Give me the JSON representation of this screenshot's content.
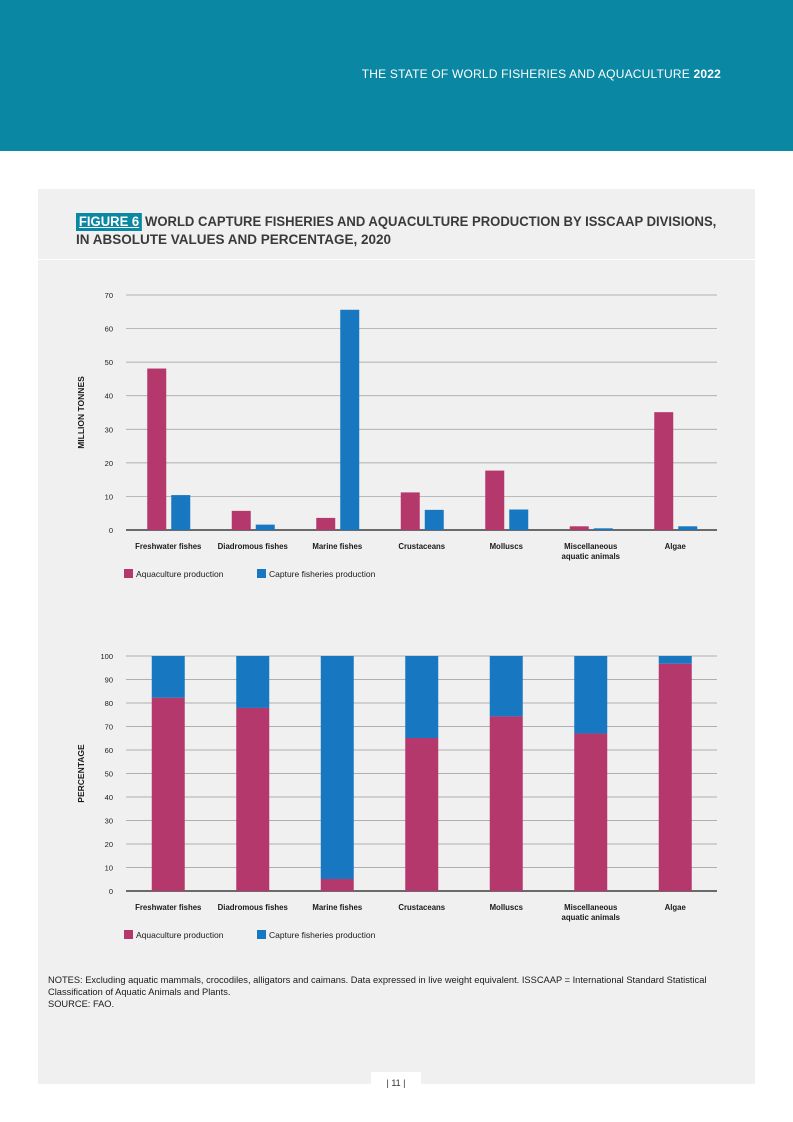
{
  "header": {
    "title_main": "THE STATE OF WORLD FISHERIES AND AQUACULTURE",
    "title_year": "2022"
  },
  "figure": {
    "badge": "FIGURE 6",
    "title_line1": "WORLD CAPTURE FISHERIES AND AQUACULTURE PRODUCTION BY ISSCAAP DIVISIONS,",
    "title_line2": "IN ABSOLUTE VALUES AND PERCENTAGE, 2020"
  },
  "colors": {
    "aquaculture": "#b5386d",
    "capture": "#1777c1",
    "banner": "#0a87a2"
  },
  "chart_data": [
    {
      "type": "bar",
      "ylabel": "MILLION TONNES",
      "ylim": [
        0,
        70
      ],
      "yticks": [
        0,
        10,
        20,
        30,
        40,
        50,
        60,
        70
      ],
      "grid": true,
      "legend_position": "bottom-left",
      "categories": [
        [
          "Freshwater fishes"
        ],
        [
          "Diadromous fishes"
        ],
        [
          "Marine fishes"
        ],
        [
          "Crustaceans"
        ],
        [
          "Molluscs"
        ],
        [
          "Miscellaneous",
          "aquatic animals"
        ],
        [
          "Algae"
        ]
      ],
      "series": [
        {
          "name": "Aquaculture production",
          "values": [
            48.1,
            5.7,
            3.6,
            11.2,
            17.7,
            1.1,
            35.1
          ]
        },
        {
          "name": "Capture fisheries production",
          "values": [
            10.4,
            1.6,
            65.6,
            6.0,
            6.1,
            0.5,
            1.1
          ]
        }
      ]
    },
    {
      "type": "bar",
      "stacked": true,
      "ylabel": "PERCENTAGE",
      "ylim": [
        0,
        100
      ],
      "yticks": [
        0,
        10,
        20,
        30,
        40,
        50,
        60,
        70,
        80,
        90,
        100
      ],
      "grid": true,
      "legend_position": "bottom-left",
      "categories": [
        [
          "Freshwater fishes"
        ],
        [
          "Diadromous fishes"
        ],
        [
          "Marine fishes"
        ],
        [
          "Crustaceans"
        ],
        [
          "Molluscs"
        ],
        [
          "Miscellaneous",
          "aquatic animals"
        ],
        [
          "Algae"
        ]
      ],
      "series": [
        {
          "name": "Aquaculture production",
          "values": [
            82.2,
            77.9,
            5.1,
            65.1,
            74.3,
            67.0,
            96.7
          ]
        },
        {
          "name": "Capture fisheries production",
          "values": [
            17.8,
            22.1,
            94.9,
            34.9,
            25.7,
            33.0,
            3.3
          ]
        }
      ]
    }
  ],
  "notes": {
    "line1": "NOTES: Excluding aquatic mammals, crocodiles, alligators and caimans. Data expressed in live weight equivalent. ISSCAAP = International Standard Statistical Classification of Aquatic Animals and Plants.",
    "line2": "SOURCE: FAO."
  },
  "page_number": "| 11 |"
}
